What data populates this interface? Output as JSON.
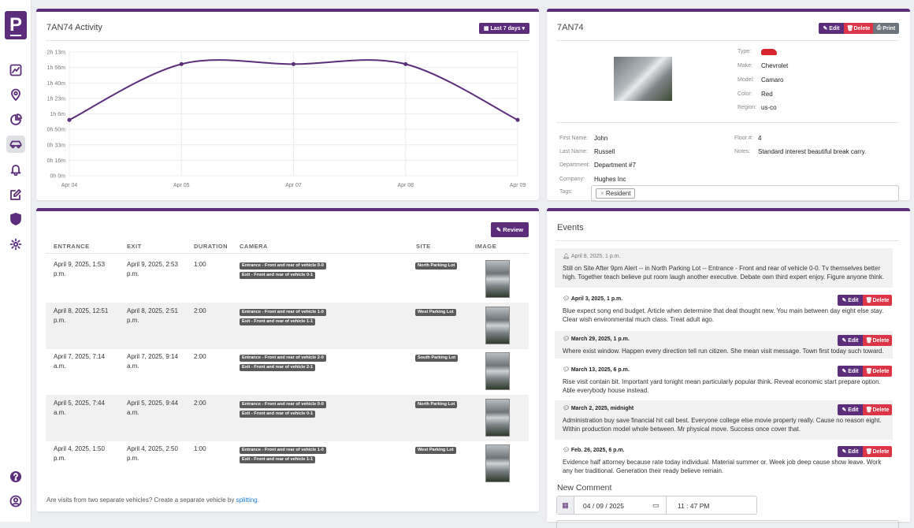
{
  "nav": {
    "logo": "P"
  },
  "activity": {
    "title": "7AN74 Activity",
    "range_button": "Last 7 days",
    "y_labels": [
      "2h 13m",
      "1h 56m",
      "1h 40m",
      "1h 23m",
      "1h 6m",
      "0h 50m",
      "0h 33m",
      "0h 16m",
      "0h 0m"
    ],
    "x_labels": [
      "Apr 04",
      "Apr 05",
      "Apr 07",
      "Apr 08",
      "Apr 09"
    ]
  },
  "chart_data": {
    "type": "line",
    "categories": [
      "Apr 04",
      "Apr 05",
      "Apr 07",
      "Apr 08",
      "Apr 09"
    ],
    "values": [
      60,
      120,
      120,
      120,
      60
    ],
    "ylim": [
      0,
      133
    ],
    "y_unit": "minutes",
    "grid": true,
    "color": "#5b2d7a"
  },
  "vehicle": {
    "title": "7AN74",
    "edit": "Edit",
    "delete": "Delete",
    "print": "Print",
    "type_label": "Type:",
    "make_label": "Make:",
    "make": "Chevrolet",
    "model_label": "Model:",
    "model": "Camaro",
    "color_label": "Color:",
    "color": "Red",
    "region_label": "Region:",
    "region": "us-co",
    "first_label": "First Name:",
    "first": "John",
    "last_label": "Last Name:",
    "last": "Russell",
    "dept_label": "Department:",
    "dept": "Department #7",
    "company_label": "Company:",
    "company": "Hughes Inc",
    "tags_label": "Tags:",
    "tag": "Resident",
    "floor_label": "Floor #:",
    "floor": "4",
    "notes_label": "Notes:",
    "notes": "Standard interest beautiful break carry."
  },
  "visits": {
    "review": "Review",
    "headers": {
      "entrance": "ENTRANCE",
      "exit": "EXIT",
      "duration": "DURATION",
      "camera": "CAMERA",
      "site": "SITE",
      "image": "IMAGE"
    },
    "rows": [
      {
        "entrance": "April 9, 2025, 1:53 p.m.",
        "exit": "April 9, 2025, 2:53 p.m.",
        "duration": "1:00",
        "cam_in": "Entrance - Front and rear of vehicle 0-0",
        "cam_out": "Exit - Front and rear of vehicle 0-1",
        "site": "North Parking Lot"
      },
      {
        "entrance": "April 8, 2025, 12:51 p.m.",
        "exit": "April 8, 2025, 2:51 p.m.",
        "duration": "2:00",
        "cam_in": "Entrance - Front and rear of vehicle 1-0",
        "cam_out": "Exit - Front and rear of vehicle 1-1",
        "site": "West Parking Lot"
      },
      {
        "entrance": "April 7, 2025, 7:14 a.m.",
        "exit": "April 7, 2025, 9:14 a.m.",
        "duration": "2:00",
        "cam_in": "Entrance - Front and rear of vehicle 2-0",
        "cam_out": "Exit - Front and rear of vehicle 2-1",
        "site": "South Parking Lot"
      },
      {
        "entrance": "April 5, 2025, 7:44 a.m.",
        "exit": "April 5, 2025, 9:44 a.m.",
        "duration": "2:00",
        "cam_in": "Entrance - Front and rear of vehicle 0-0",
        "cam_out": "Exit - Front and rear of vehicle 0-1",
        "site": "North Parking Lot"
      },
      {
        "entrance": "April 4, 2025, 1:50 p.m.",
        "exit": "April 4, 2025, 2:50 p.m.",
        "duration": "1:00",
        "cam_in": "Entrance - Front and rear of vehicle 1-0",
        "cam_out": "Exit - Front and rear of vehicle 1-1",
        "site": "West Parking Lot"
      }
    ],
    "footer": "Are visits from two separate vehicles? Create a separate vehicle by ",
    "footer_link": "splitting",
    "footer_end": "."
  },
  "events": {
    "title": "Events",
    "alert": {
      "date": "April 8, 2025, 1 p.m.",
      "text": "Still on Site After 9pm Alert -- in North Parking Lot -- Entrance - Front and rear of vehicle 0-0. Tv themselves better high. Together teach believe put room laugh another executive. Debate own third expert enjoy. Figure anyone think."
    },
    "comments": [
      {
        "date": "April 3, 2025, 1 p.m.",
        "text": "Blue expect song end budget. Article when determine that deal thought new. You main between day eight else stay. Clear wish environmental much class. Treat adult ago."
      },
      {
        "date": "March 29, 2025, 1 p.m.",
        "text": "Where exist window. Happen every direction tell run citizen. She mean visit message. Town first today such toward."
      },
      {
        "date": "March 13, 2025, 6 p.m.",
        "text": "Rise visit contain bit. Important yard tonight mean particularly popular think. Reveal economic start prepare option. Able everybody house instead."
      },
      {
        "date": "March 2, 2025, midnight",
        "text": "Administration buy save financial hit call best. Everyone college else movie property really. Cause no reason eight. Within production model whole between. Mr physical move. Success once cover that."
      },
      {
        "date": "Feb. 26, 2025, 6 p.m.",
        "text": "Evidence half attorney because rate today individual. Material summer or. Week job deep cause show leave. Work any her traditional. Generation their ready believe remain."
      }
    ],
    "edit": "Edit",
    "delete": "Delete",
    "new_comment": "New Comment",
    "date_value": "04 / 09 / 2025",
    "time_value": "11 : 47  PM"
  }
}
